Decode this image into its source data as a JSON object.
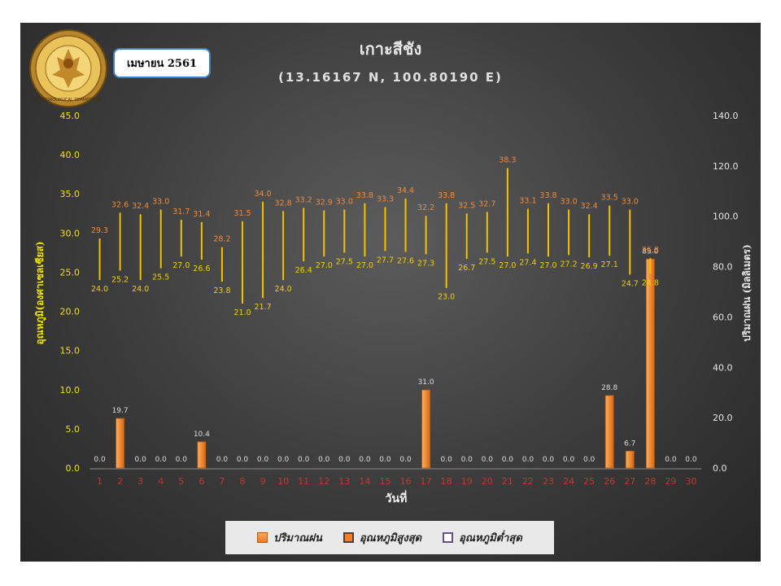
{
  "header": {
    "month_badge": "เมษายน 2561",
    "title": "เกาะสีชัง",
    "subtitle": "(13.16167 N, 100.80190 E)",
    "logo_text": "METEOROLOGICAL DEPARTMENT"
  },
  "legend": {
    "rain_label": "ปริมาณฝน",
    "tmax_label": "อุณหภูมิสูงสุด",
    "tmin_label": "อุณหภูมิต่ำสุด"
  },
  "colors": {
    "rain": "#ee7d2a",
    "temp_range": "#f2c200",
    "tmax_label": "#f08a3c",
    "tmin_label": "#f2d000",
    "rain_label": "#dddddd",
    "left_axis": "#f2e200",
    "x_ticks": "#c0392b"
  },
  "chart_data": {
    "type": "bar",
    "title": "เกาะสีชัง",
    "subtitle": "(13.16167 N, 100.80190 E)",
    "xlabel": "วันที่",
    "ylabel_left": "อุณหภูมิ(องศาเซลเซียส)",
    "ylabel_right": "ปริมาณฝน (มิลลิเมตร)",
    "ylim_left": [
      0,
      45
    ],
    "yticks_left": [
      "0.0",
      "5.0",
      "10.0",
      "15.0",
      "20.0",
      "25.0",
      "30.0",
      "35.0",
      "40.0",
      "45.0"
    ],
    "ylim_right": [
      0,
      140
    ],
    "yticks_right": [
      "0.0",
      "20.0",
      "40.0",
      "60.0",
      "80.0",
      "100.0",
      "120.0",
      "140.0"
    ],
    "x": [
      "1",
      "2",
      "3",
      "4",
      "5",
      "6",
      "7",
      "8",
      "9",
      "10",
      "11",
      "12",
      "13",
      "14",
      "15",
      "16",
      "17",
      "18",
      "19",
      "20",
      "21",
      "22",
      "23",
      "24",
      "25",
      "26",
      "27",
      "28",
      "29",
      "30"
    ],
    "series": [
      {
        "name": "ปริมาณฝน",
        "axis": "right",
        "values": [
          0.0,
          19.7,
          0.0,
          0.0,
          0.0,
          10.4,
          0.0,
          0.0,
          0.0,
          0.0,
          0.0,
          0.0,
          0.0,
          0.0,
          0.0,
          0.0,
          31.0,
          0.0,
          0.0,
          0.0,
          0.0,
          0.0,
          0.0,
          0.0,
          0.0,
          28.8,
          6.7,
          83.0,
          0.0,
          0.0
        ]
      },
      {
        "name": "อุณหภูมิสูงสุด",
        "axis": "left",
        "values": [
          29.3,
          32.6,
          32.4,
          33.0,
          31.7,
          31.4,
          28.2,
          31.5,
          34.0,
          32.8,
          33.2,
          32.9,
          33.0,
          33.8,
          33.3,
          34.4,
          32.2,
          33.8,
          32.5,
          32.7,
          38.3,
          33.1,
          33.8,
          33.0,
          32.4,
          33.5,
          33.0,
          26.8,
          null,
          null
        ]
      },
      {
        "name": "อุณหภูมิต่ำสุด",
        "axis": "left",
        "values": [
          24.0,
          25.2,
          24.0,
          25.5,
          27.0,
          26.6,
          23.8,
          21.0,
          21.7,
          24.0,
          26.4,
          27.0,
          27.5,
          27.0,
          27.7,
          27.6,
          27.3,
          23.0,
          26.7,
          27.5,
          27.0,
          27.4,
          27.0,
          27.2,
          26.9,
          27.1,
          24.7,
          24.8,
          null,
          null
        ]
      }
    ],
    "value_labels": {
      "rain": [
        "0.0",
        "19.7",
        "0.0",
        "0.0",
        "0.0",
        "10.4",
        "0.0",
        "0.0",
        "0.0",
        "0.0",
        "0.0",
        "0.0",
        "0.0",
        "0.0",
        "0.0",
        "0.0",
        "31.0",
        "0.0",
        "0.0",
        "0.0",
        "0.0",
        "0.0",
        "0.0",
        "0.0",
        "0.0",
        "28.8",
        "6.7",
        "83.0",
        "0.0",
        "0.0"
      ],
      "tmax": [
        "29.3",
        "32.6",
        "32.4",
        "33.0",
        "31.7",
        "31.4",
        "28.2",
        "31.5",
        "34.0",
        "32.8",
        "33.2",
        "32.9",
        "33.0",
        "33.8",
        "33.3",
        "34.4",
        "32.2",
        "33.8",
        "32.5",
        "32.7",
        "38.3",
        "33.1",
        "33.8",
        "33.0",
        "32.4",
        "33.5",
        "33.0",
        "26.8",
        "",
        ""
      ],
      "tmin": [
        "24.0",
        "25.2",
        "24.0",
        "25.5",
        "27.0",
        "26.6",
        "23.8",
        "21.0",
        "21.7",
        "24.0",
        "26.4",
        "27.0",
        "27.5",
        "27.0",
        "27.7",
        "27.6",
        "27.3",
        "23.0",
        "26.7",
        "27.5",
        "27.0",
        "27.4",
        "27.0",
        "27.2",
        "26.9",
        "27.1",
        "24.7",
        "24.8",
        "",
        ""
      ]
    }
  }
}
